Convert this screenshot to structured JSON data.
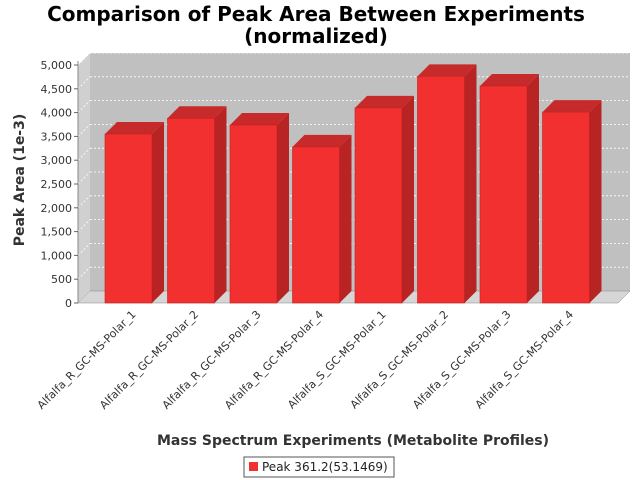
{
  "chart_data": {
    "type": "bar",
    "title": "Comparison of Peak Area Between Experiments",
    "subtitle": "(normalized)",
    "xlabel": "Mass Spectrum Experiments (Metabolite Profiles)",
    "ylabel": "Peak Area (1e-3)",
    "ylim": [
      0,
      5000
    ],
    "yticks": [
      "0",
      "500",
      "1,000",
      "1,500",
      "2,000",
      "2,500",
      "3,000",
      "3,500",
      "4,000",
      "4,500",
      "5,000"
    ],
    "categories": [
      "Alfalfa_R_GC-MS-Polar_1",
      "Alfalfa_R_GC-MS-Polar_2",
      "Alfalfa_R_GC-MS-Polar_3",
      "Alfalfa_R_GC-MS-Polar_4",
      "Alfalfa_S_GC-MS-Polar_1",
      "Alfalfa_S_GC-MS-Polar_2",
      "Alfalfa_S_GC-MS-Polar_3",
      "Alfalfa_S_GC-MS-Polar_4"
    ],
    "series": [
      {
        "name": "Peak 361.2(53.1469)",
        "color": "#f23030",
        "values": [
          3550,
          3880,
          3740,
          3280,
          4100,
          4760,
          4560,
          4010
        ]
      }
    ],
    "grid": true,
    "legend_position": "bottom"
  }
}
